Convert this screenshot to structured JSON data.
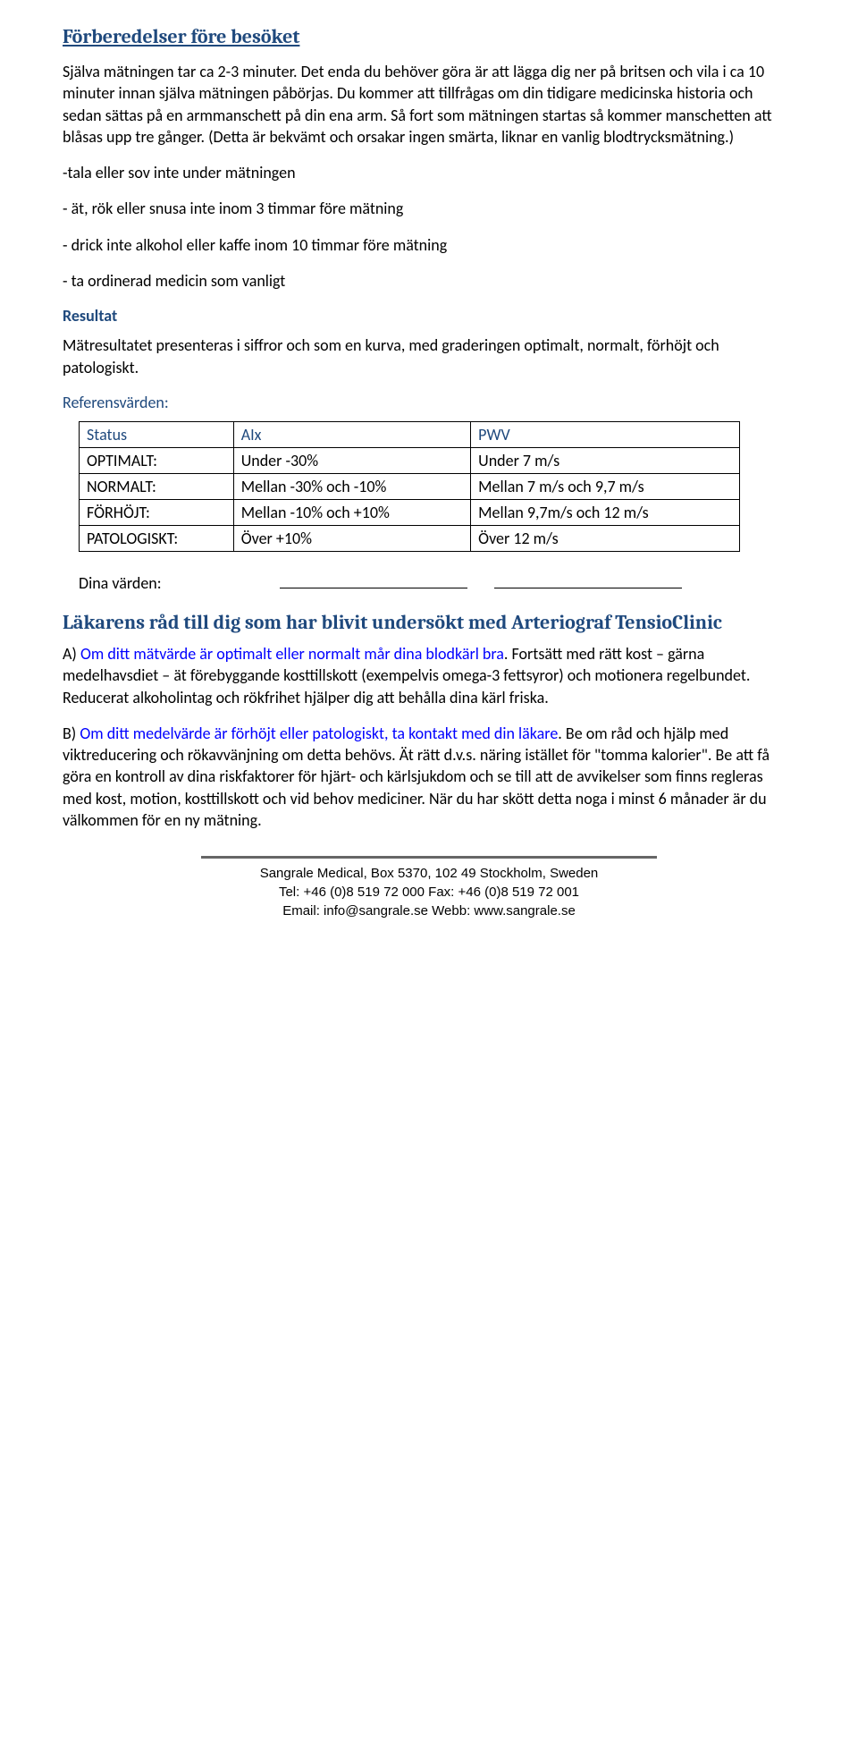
{
  "section1": {
    "heading": "Förberedelser före besöket",
    "para1": "Själva mätningen tar ca 2-3 minuter. Det enda du behöver göra är att lägga dig ner på britsen och vila i ca 10 minuter innan själva mätningen påbörjas. Du kommer att tillfrågas om din tidigare medicinska historia och sedan sättas på en armmanschett på din ena arm. Så fort som mätningen startas så kommer manschetten att blåsas upp tre gånger. (Detta är bekvämt och orsakar ingen smärta, liknar en vanlig blodtrycksmätning.)",
    "bullet1": "-tala eller sov inte under mätningen",
    "bullet2": "- ät, rök eller snusa  inte inom 3 timmar före mätning",
    "bullet3": "- drick inte alkohol eller kaffe inom 10 timmar före mätning",
    "bullet4": "- ta ordinerad medicin som vanligt"
  },
  "section2": {
    "heading": "Resultat",
    "para1": "Mätresultatet presenteras i siffror och som en kurva, med graderingen optimalt, normalt, förhöjt och patologiskt.",
    "ref_label": "Referensvärden:",
    "table": {
      "headers": [
        "Status",
        "AIx",
        "PWV"
      ],
      "rows": [
        [
          "OPTIMALT:",
          "Under -30%",
          "Under 7 m/s"
        ],
        [
          "NORMALT:",
          "Mellan -30% och -10%",
          "Mellan 7 m/s och 9,7 m/s"
        ],
        [
          "FÖRHÖJT:",
          "Mellan -10% och +10%",
          "Mellan 9,7m/s och 12 m/s"
        ],
        [
          "PATOLOGISKT:",
          "Över +10%",
          "Över 12 m/s"
        ]
      ]
    },
    "values_label": "Dina värden:"
  },
  "section3": {
    "heading": "Läkarens råd till dig som har blivit undersökt med Arteriograf TensioClinic",
    "paraA_lead": "A) ",
    "paraA_link": "Om ditt mätvärde är optimalt eller normalt mår dina blodkärl bra",
    "paraA_rest": ". Fortsätt med rätt kost – gärna medelhavsdiet – ät förebyggande kosttillskott (exempelvis omega-3 fettsyror) och motionera regelbundet. Reducerat alkoholintag och rökfrihet hjälper dig att behålla dina kärl friska.",
    "paraB_lead": "B) ",
    "paraB_link": "Om ditt medelvärde är förhöjt eller patologiskt, ta kontakt med din läkare",
    "paraB_rest": ". Be om råd och hjälp med viktreducering och rökavvänjning om detta behövs.  Ät rätt d.v.s. näring istället för \"tomma kalorier\". Be att få göra en kontroll av dina riskfaktorer för hjärt- och kärlsjukdom och se till att de avvikelser som finns regleras med kost, motion, kosttillskott och vid behov mediciner. När du har skött detta noga i minst 6 månader är du välkommen för en ny mätning."
  },
  "footer": {
    "line1": "Sangrale Medical, Box 5370, 102 49 Stockholm, Sweden",
    "line2": "Tel: +46 (0)8 519 72 000 Fax: +46 (0)8 519 72 001",
    "line3": "Email: info@sangrale.se Webb: www.sangrale.se"
  }
}
